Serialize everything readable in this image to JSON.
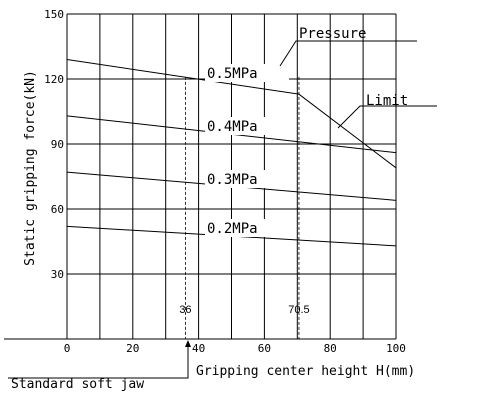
{
  "chart_data": {
    "type": "line",
    "xlabel": "Gripping center height H(mm)",
    "ylabel": "Static gripping force(kN)",
    "xlim": [
      0,
      100
    ],
    "ylim": [
      0,
      150
    ],
    "x_ticks": [
      0,
      20,
      40,
      60,
      80,
      100
    ],
    "y_ticks": [
      30,
      60,
      90,
      120,
      150
    ],
    "grid": true,
    "series": [
      {
        "name": "0.5MPa",
        "x": [
          0,
          70.5
        ],
        "y": [
          129,
          113
        ]
      },
      {
        "name": "0.4MPa",
        "x": [
          0,
          100
        ],
        "y": [
          103,
          86
        ]
      },
      {
        "name": "0.3MPa",
        "x": [
          0,
          100
        ],
        "y": [
          77,
          64
        ]
      },
      {
        "name": "0.2MPa",
        "x": [
          0,
          100
        ],
        "y": [
          52,
          43
        ]
      }
    ],
    "limit_line": {
      "name": "Limit",
      "x": [
        70.5,
        100
      ],
      "y": [
        113,
        79
      ]
    },
    "reference_lines": [
      {
        "x": 36,
        "label": "36"
      },
      {
        "x": 70.5,
        "label": "70.5"
      }
    ],
    "annotations": {
      "pressure": "Pressure",
      "limit": "Limit",
      "standard_soft_jaw": "Standard soft jaw"
    }
  }
}
